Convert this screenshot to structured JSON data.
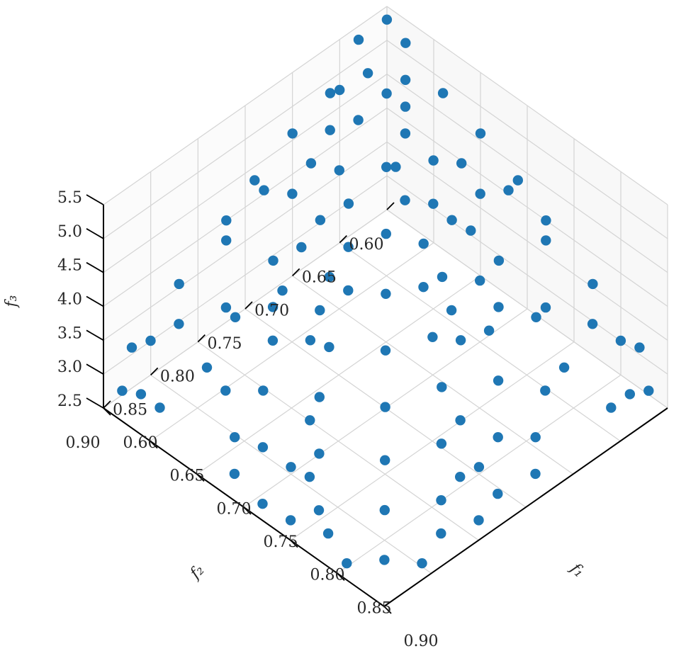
{
  "chart_data": {
    "type": "scatter",
    "projection": "3d",
    "title": "",
    "xlabel": "f₁",
    "ylabel": "f₂",
    "zlabel": "f₃",
    "xlim": [
      0.6,
      0.9
    ],
    "ylim": [
      0.6,
      0.9
    ],
    "zlim": [
      2.5,
      5.5
    ],
    "x_ticks": [
      "0.60",
      "0.65",
      "0.70",
      "0.75",
      "0.80",
      "0.85",
      "0.90"
    ],
    "y_ticks": [
      "0.60",
      "0.65",
      "0.70",
      "0.75",
      "0.80",
      "0.85",
      "0.90"
    ],
    "z_ticks": [
      "2.5",
      "3.0",
      "3.5",
      "4.0",
      "4.5",
      "5.0",
      "5.5"
    ],
    "grid": true,
    "colors": {
      "marker": "#1f77b4",
      "grid": "#d4d4d4",
      "axis": "#000000",
      "text": "#262626"
    },
    "series": [
      {
        "points": [
          [
            0.61,
            0.61,
            5.5
          ],
          [
            0.63,
            0.61,
            5.35
          ],
          [
            0.6,
            0.63,
            5.3
          ],
          [
            0.62,
            0.64,
            5.1
          ],
          [
            0.64,
            0.62,
            5.0
          ],
          [
            0.61,
            0.66,
            4.95
          ],
          [
            0.65,
            0.63,
            4.8
          ],
          [
            0.63,
            0.66,
            4.7
          ],
          [
            0.66,
            0.64,
            4.6
          ],
          [
            0.62,
            0.68,
            4.65
          ],
          [
            0.67,
            0.66,
            4.4
          ],
          [
            0.64,
            0.69,
            4.35
          ],
          [
            0.68,
            0.63,
            4.3
          ],
          [
            0.69,
            0.67,
            4.2
          ],
          [
            0.66,
            0.7,
            4.15
          ],
          [
            0.7,
            0.65,
            4.05
          ],
          [
            0.72,
            0.68,
            3.95
          ],
          [
            0.68,
            0.72,
            3.9
          ],
          [
            0.73,
            0.64,
            3.85
          ],
          [
            0.65,
            0.74,
            3.8
          ],
          [
            0.74,
            0.7,
            3.7
          ],
          [
            0.7,
            0.74,
            3.65
          ],
          [
            0.76,
            0.66,
            3.6
          ],
          [
            0.66,
            0.77,
            3.55
          ],
          [
            0.77,
            0.72,
            3.45
          ],
          [
            0.72,
            0.78,
            3.4
          ],
          [
            0.79,
            0.68,
            3.35
          ],
          [
            0.68,
            0.8,
            3.3
          ],
          [
            0.8,
            0.74,
            3.2
          ],
          [
            0.74,
            0.81,
            3.15
          ],
          [
            0.82,
            0.7,
            3.1
          ],
          [
            0.7,
            0.83,
            3.05
          ],
          [
            0.83,
            0.77,
            2.95
          ],
          [
            0.77,
            0.84,
            2.9
          ],
          [
            0.85,
            0.73,
            2.85
          ],
          [
            0.73,
            0.86,
            2.8
          ],
          [
            0.86,
            0.8,
            2.7
          ],
          [
            0.8,
            0.87,
            2.65
          ],
          [
            0.88,
            0.76,
            2.6
          ],
          [
            0.76,
            0.89,
            2.55
          ],
          [
            0.62,
            0.72,
            4.1
          ],
          [
            0.64,
            0.76,
            3.7
          ],
          [
            0.63,
            0.8,
            3.3
          ],
          [
            0.65,
            0.84,
            3.0
          ],
          [
            0.64,
            0.88,
            2.7
          ],
          [
            0.72,
            0.62,
            4.1
          ],
          [
            0.76,
            0.64,
            3.7
          ],
          [
            0.8,
            0.63,
            3.3
          ],
          [
            0.84,
            0.65,
            3.0
          ],
          [
            0.88,
            0.64,
            2.7
          ],
          [
            0.61,
            0.74,
            4.25
          ],
          [
            0.61,
            0.78,
            3.9
          ],
          [
            0.6,
            0.82,
            3.55
          ],
          [
            0.61,
            0.86,
            3.2
          ],
          [
            0.62,
            0.9,
            2.95
          ],
          [
            0.74,
            0.61,
            4.25
          ],
          [
            0.78,
            0.61,
            3.9
          ],
          [
            0.82,
            0.6,
            3.55
          ],
          [
            0.86,
            0.61,
            3.2
          ],
          [
            0.9,
            0.62,
            2.95
          ],
          [
            0.6,
            0.7,
            4.6
          ],
          [
            0.7,
            0.6,
            4.6
          ],
          [
            0.61,
            0.67,
            5.0
          ],
          [
            0.67,
            0.61,
            5.0
          ],
          [
            0.63,
            0.71,
            4.55
          ],
          [
            0.71,
            0.63,
            4.55
          ],
          [
            0.66,
            0.73,
            4.2
          ],
          [
            0.73,
            0.66,
            4.2
          ],
          [
            0.69,
            0.75,
            3.85
          ],
          [
            0.75,
            0.69,
            3.85
          ],
          [
            0.71,
            0.79,
            3.5
          ],
          [
            0.79,
            0.71,
            3.5
          ],
          [
            0.75,
            0.83,
            3.1
          ],
          [
            0.83,
            0.75,
            3.1
          ],
          [
            0.78,
            0.86,
            2.85
          ],
          [
            0.86,
            0.78,
            2.85
          ],
          [
            0.82,
            0.88,
            2.6
          ],
          [
            0.88,
            0.82,
            2.6
          ],
          [
            0.84,
            0.84,
            2.75
          ],
          [
            0.81,
            0.81,
            2.9
          ],
          [
            0.78,
            0.78,
            3.1
          ],
          [
            0.75,
            0.75,
            3.35
          ],
          [
            0.72,
            0.72,
            3.6
          ],
          [
            0.69,
            0.69,
            3.9
          ],
          [
            0.66,
            0.66,
            4.3
          ],
          [
            0.63,
            0.63,
            4.8
          ],
          [
            0.87,
            0.87,
            2.6
          ],
          [
            0.89,
            0.85,
            2.55
          ],
          [
            0.85,
            0.89,
            2.55
          ],
          [
            0.7,
            0.77,
            3.65
          ],
          [
            0.77,
            0.7,
            3.65
          ],
          [
            0.67,
            0.79,
            3.6
          ],
          [
            0.79,
            0.67,
            3.6
          ],
          [
            0.65,
            0.81,
            3.45
          ],
          [
            0.81,
            0.65,
            3.45
          ],
          [
            0.62,
            0.84,
            3.35
          ],
          [
            0.84,
            0.62,
            3.35
          ],
          [
            0.6,
            0.87,
            3.1
          ],
          [
            0.87,
            0.6,
            3.1
          ],
          [
            0.63,
            0.89,
            2.9
          ],
          [
            0.89,
            0.63,
            2.9
          ],
          [
            0.68,
            0.85,
            3.05
          ],
          [
            0.85,
            0.68,
            3.05
          ],
          [
            0.71,
            0.87,
            2.85
          ],
          [
            0.87,
            0.71,
            2.85
          ],
          [
            0.73,
            0.89,
            2.7
          ],
          [
            0.89,
            0.73,
            2.7
          ],
          [
            0.76,
            0.86,
            2.8
          ],
          [
            0.86,
            0.76,
            2.8
          ],
          [
            0.79,
            0.89,
            2.6
          ],
          [
            0.89,
            0.79,
            2.6
          ],
          [
            0.6,
            0.77,
            4.0
          ],
          [
            0.77,
            0.6,
            4.0
          ],
          [
            0.6,
            0.74,
            4.3
          ],
          [
            0.74,
            0.6,
            4.3
          ]
        ]
      }
    ]
  }
}
